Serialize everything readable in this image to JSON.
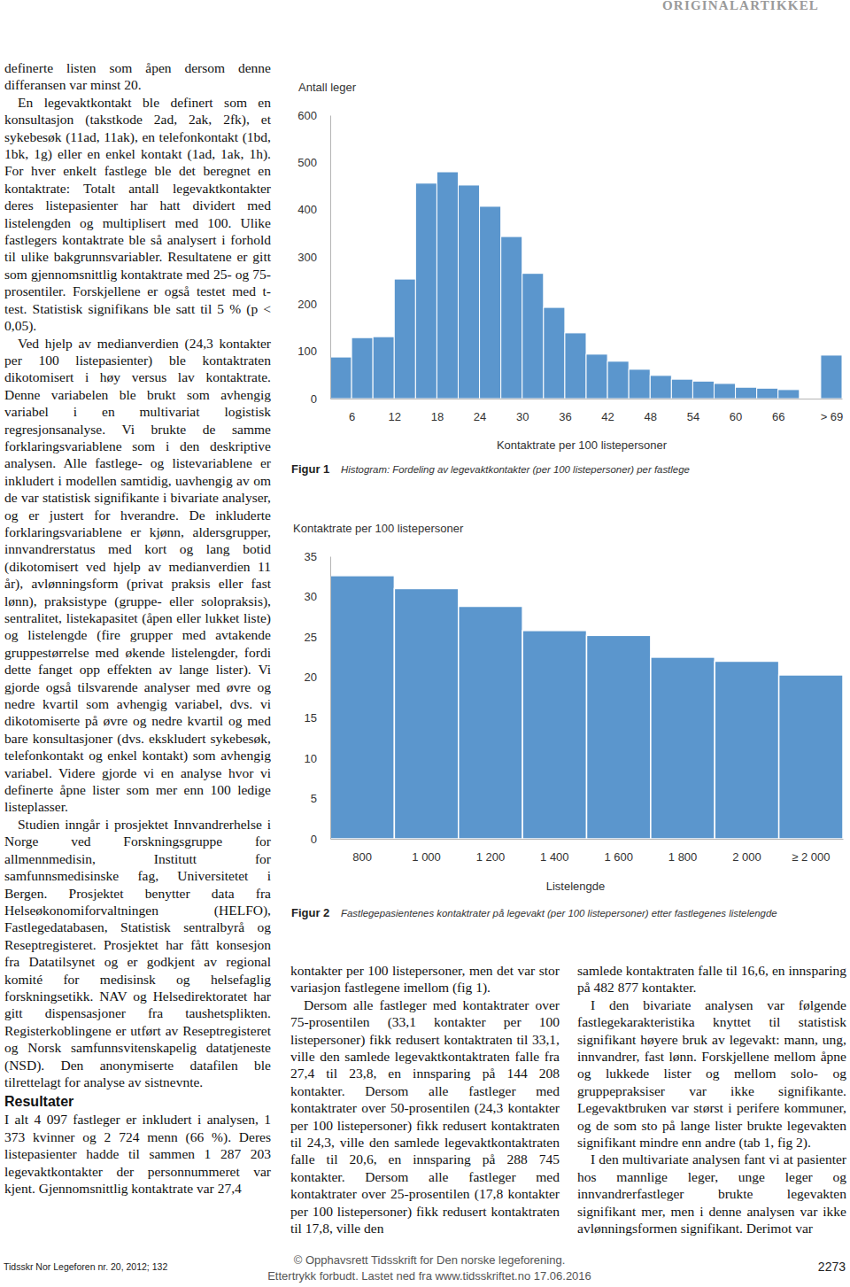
{
  "header": "ORIGINALARTIKKEL",
  "left_column": {
    "paragraphs_before": [
      "definerte listen som åpen dersom denne differansen var minst 20.",
      "En legevaktkontakt ble definert som en konsultasjon (takstkode 2ad, 2ak, 2fk), et sykebesøk (11ad, 11ak), en telefonkontakt (1bd, 1bk, 1g) eller en enkel kontakt (1ad, 1ak, 1h). For hver enkelt fastlege ble det beregnet en kontaktrate: Totalt antall legevaktkontakter deres listepasienter har hatt dividert med listelengden og multiplisert med 100. Ulike fastlegers kontaktrate ble så analysert i forhold til ulike bakgrunnsvariabler. Resultatene er gitt som gjennomsnittlig kontaktrate med 25- og 75-prosentiler. Forskjellene er også testet med t-test. Statistisk signifikans ble satt til 5 % (p < 0,05).",
      "Ved hjelp av medianverdien (24,3 kontakter per 100 listepasienter) ble kontaktraten dikotomisert i høy versus lav kontaktrate. Denne variabelen ble brukt som avhengig variabel i en multivariat logistisk regresjonsanalyse. Vi brukte de samme forklaringsvariablene som i den deskriptive analysen. Alle fastlege- og listevariablene er inkludert i modellen samtidig, uavhengig av om de var statistisk signifikante i bivariate analyser, og er justert for hverandre. De inkluderte forklaringsvariablene er kjønn, aldersgrupper, innvandrerstatus med kort og lang botid (dikotomisert ved hjelp av medianverdien 11 år), avlønningsform (privat praksis eller fast lønn), praksistype (gruppe- eller solopraksis), sentralitet, listekapasitet (åpen eller lukket liste) og listelengde (fire grupper med avtakende gruppestørrelse med økende listelengder, fordi dette fanget opp effekten av lange lister). Vi gjorde også tilsvarende analyser med øvre og nedre kvartil som avhengig variabel, dvs. vi dikotomiserte på øvre og nedre kvartil og med bare konsultasjoner (dvs. ekskludert sykebesøk, telefonkontakt og enkel kontakt) som avhengig variabel. Videre gjorde vi en analyse hvor vi definerte åpne lister som mer enn 100 ledige listeplasser.",
      "Studien inngår i prosjektet Innvandrerhelse i Norge ved Forskningsgruppe for allmennmedisin, Institutt for samfunnsmedisinske fag, Universitetet i Bergen. Prosjektet benytter data fra Helseøkonomiforvaltningen (HELFO), Fastlegedatabasen, Statistisk sentralbyrå og Reseptregisteret. Prosjektet har fått konsesjon fra Datatilsynet og er godkjent av regional komité for medisinsk og helsefaglig forskningsetikk. NAV og Helsedirektoratet har gitt dispensasjoner fra taushetsplikten. Registerkoblingene er utført av Reseptregisteret og Norsk samfunnsvitenskapelig datatjeneste (NSD). Den anonymiserte datafilen ble tilrettelagt for analyse av sistnevnte."
    ],
    "heading": "Resultater",
    "paragraphs_after": [
      "I alt 4 097 fastleger er inkludert i analysen, 1 373 kvinner og 2 724 menn (66 %). Deres listepasienter hadde til sammen 1 287 203 legevaktkontakter der personnummeret var kjent. Gjennomsnittlig kontaktrate var 27,4"
    ]
  },
  "bottom_columns": [
    [
      "kontakter per 100 listepersoner, men det var stor variasjon fastlegene imellom (fig 1).",
      "Dersom alle fastleger med kontaktrater over 75-prosentilen (33,1 kontakter per 100 listepersoner) fikk redusert kontaktraten til 33,1, ville den samlede legevaktkontaktraten falle fra 27,4 til 23,8, en innsparing på 144 208 kontakter. Dersom alle fastleger med kontaktrater over 50-prosentilen (24,3 kontakter per 100 listepersoner) fikk redusert kontaktraten til 24,3, ville den samlede legevaktkontaktraten falle til 20,6, en innsparing på 288 745 kontakter. Dersom alle fastleger med kontaktrater over 25-prosentilen (17,8 kontakter per 100 listepersoner) fikk redusert kontaktraten til 17,8, ville den"
    ],
    [
      "samlede kontaktraten falle til 16,6, en innsparing på 482 877 kontakter.",
      "I den bivariate analysen var følgende fastlegekarakteristika knyttet til statistisk signifikant høyere bruk av legevakt: mann, ung, innvandrer, fast lønn. Forskjellene mellom åpne og lukkede lister og mellom solo- og gruppepraksiser var ikke signifikante. Legevaktbruken var størst i perifere kommuner, og de som sto på lange lister brukte legevakten signifikant mindre enn andre (tab 1, fig 2).",
      "I den multivariate analysen fant vi at pasienter hos mannlige leger, unge leger og innvandrerfastleger brukte legevakten signifikant mer, men i denne analysen var ikke avlønningsformen signifikant. Derimot var"
    ]
  ],
  "chart_data": [
    {
      "type": "histogram",
      "y_label": "Antall leger",
      "x_label": "Kontaktrate per 100 listepersoner",
      "figure_label": "Figur 1",
      "caption": "Histogram: Fordeling av legevaktkontakter (per 100 listepersoner) per fastlege",
      "bins": [
        3,
        6,
        9,
        12,
        15,
        18,
        21,
        24,
        27,
        30,
        33,
        36,
        39,
        42,
        45,
        48,
        51,
        54,
        57,
        60,
        63,
        66,
        69,
        72,
        75
      ],
      "counts": [
        88,
        129,
        131,
        253,
        456,
        480,
        452,
        407,
        343,
        265,
        193,
        139,
        94,
        79,
        62,
        49,
        41,
        37,
        32,
        24,
        22,
        19,
        0,
        92
      ],
      "color": "#5b96cd",
      "xlim": [
        3,
        75
      ],
      "ylim": [
        0,
        600
      ],
      "xticks": [
        6,
        12,
        18,
        24,
        30,
        36,
        42,
        48,
        54,
        60,
        66,
        {
          "value": 73.5,
          "label": "> 69"
        }
      ],
      "yticks": [
        0,
        100,
        200,
        300,
        400,
        500,
        600
      ],
      "grid": false
    },
    {
      "type": "bar",
      "y_label": "Kontaktrate per 100 listepersoner",
      "x_label": "Listelengde",
      "figure_label": "Figur 2",
      "caption": "Fastlegepasientenes kontaktrater på legevakt (per 100 listepersoner) etter fastlegenes listelengde",
      "categories": [
        "800",
        "1 000",
        "1 200",
        "1 400",
        "1 600",
        "1 800",
        "2 000",
        "≥ 2 000"
      ],
      "values": [
        32.6,
        31.0,
        28.8,
        25.8,
        25.2,
        22.5,
        22.0,
        20.3
      ],
      "color": "#5b96cd",
      "ylim": [
        0,
        35
      ],
      "yticks": [
        0,
        5,
        10,
        15,
        20,
        25,
        30,
        35
      ],
      "grid": false
    }
  ],
  "footer": {
    "journal": "Tidsskr Nor Legeforen nr. 20, 2012; 132",
    "copyright": [
      "© Opphavsrett Tidsskrift for Den norske legeforening.",
      "Ettertrykk forbudt. Lastet ned fra www.tidsskriftet.no 17.06.2016"
    ],
    "page_number": "2273"
  }
}
